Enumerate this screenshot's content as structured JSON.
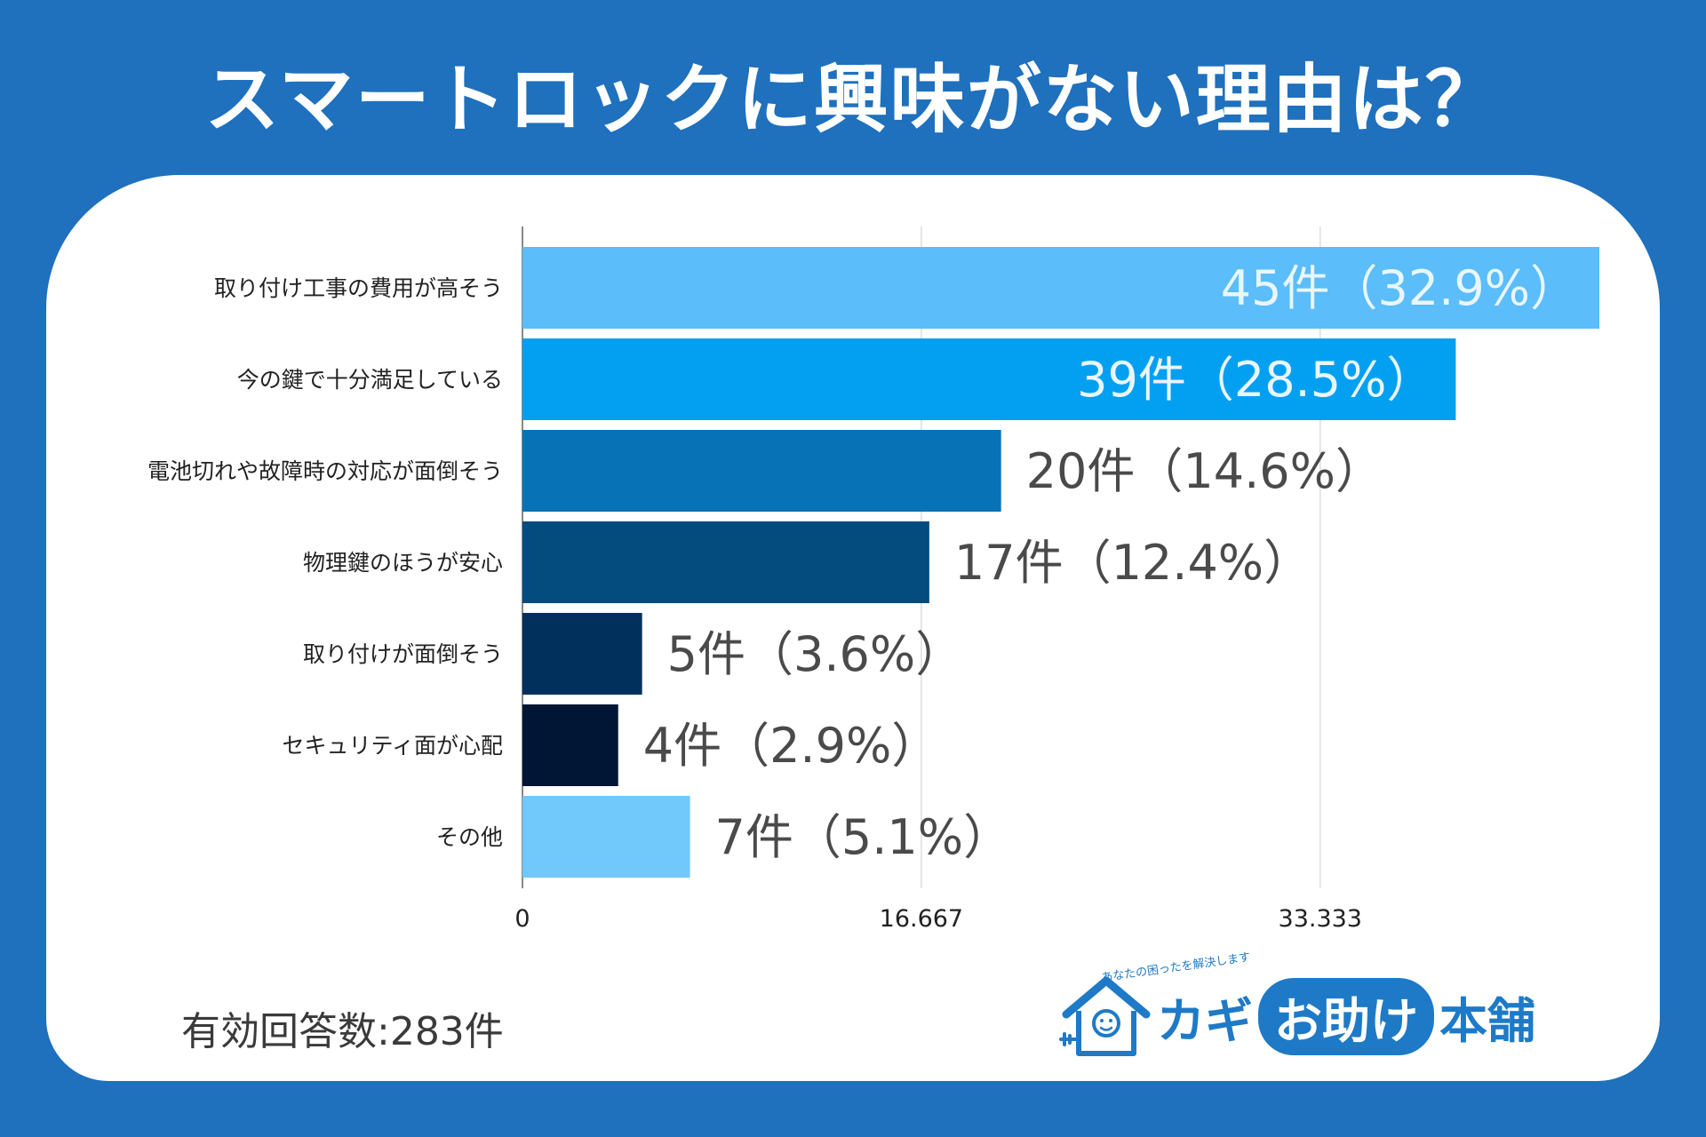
{
  "title": "スマートロックに興味がない理由は？",
  "colors": {
    "background": "#1f70bd",
    "card": "#ffffff",
    "grid": "#dddddd",
    "axis": "#888888",
    "logo_blue": "#1e7ac7"
  },
  "chart_data": {
    "type": "bar",
    "orientation": "horizontal",
    "categories": [
      "取り付け工事の費用が高そう",
      "今の鍵で十分満足している",
      "電池切れや故障時の対応が面倒そう",
      "物理鍵のほうが安心",
      "取り付けが面倒そう",
      "セキュリティ面が心配",
      "その他"
    ],
    "values": [
      45,
      39,
      20,
      17,
      5,
      4,
      7
    ],
    "data_labels": [
      "45件（32.9%）",
      "39件（28.5%）",
      "20件（14.6%）",
      "17件（12.4%）",
      "5件（3.6%）",
      "4件（2.9%）",
      "7件（5.1%）"
    ],
    "bar_colors": [
      "#5bbdf9",
      "#03a0f1",
      "#0872b7",
      "#044b7e",
      "#01305c",
      "#011634",
      "#71c8fa"
    ],
    "label_inside": [
      true,
      true,
      false,
      false,
      false,
      false,
      false
    ],
    "xlim": [
      0,
      45
    ],
    "x_ticks": [
      0,
      16.667,
      33.333
    ],
    "x_tick_labels": [
      "0",
      "16.667",
      "33.333"
    ],
    "grid": true
  },
  "footer": {
    "respondents": "有効回答数:283件"
  },
  "logo": {
    "tagline": "あなたの困ったを解決します",
    "text_1": "カギ",
    "text_2": "お助け",
    "text_3": "本舗"
  }
}
